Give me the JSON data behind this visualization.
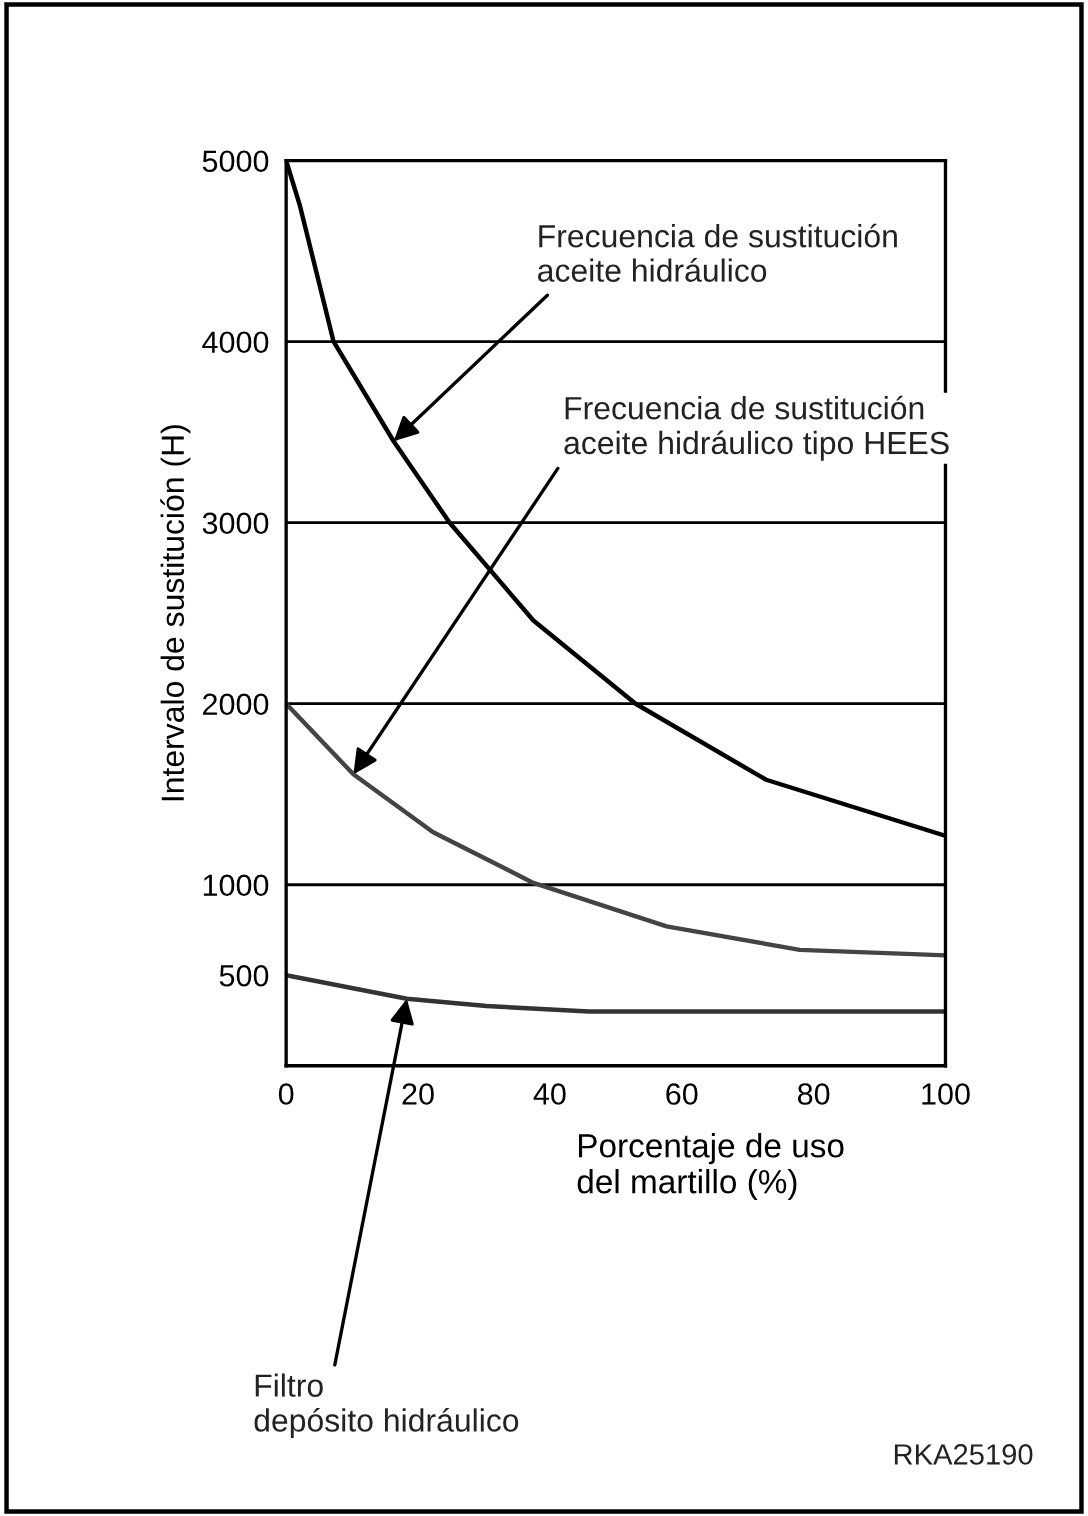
{
  "chart_data": {
    "type": "line",
    "ylabel": "Intervalo de sustitución (H)",
    "xlabel": "Porcentaje de uso\ndel martillo (%)",
    "xlim": [
      0,
      100
    ],
    "xticks": [
      0,
      20,
      40,
      60,
      80,
      100
    ],
    "ylim": [
      0,
      5000
    ],
    "yticks": [
      500,
      1000,
      2000,
      3000,
      4000,
      5000
    ],
    "grid": false,
    "legend": false,
    "marker": "none",
    "line_style": "solid",
    "ref_lines": [
      {
        "axis": "y",
        "value": 1000,
        "label": null,
        "color": "#000000"
      },
      {
        "axis": "y",
        "value": 2000,
        "label": null,
        "color": "#000000"
      },
      {
        "axis": "y",
        "value": 3000,
        "label": null,
        "color": "#000000"
      },
      {
        "axis": "y",
        "value": 4000,
        "label": null,
        "color": "#000000"
      }
    ],
    "series": [
      {
        "color": "#000000",
        "x": [
          0,
          2.1,
          7.2,
          16.3,
          24.8,
          37.5,
          53,
          72.8,
          100
        ],
        "values": [
          5000,
          4750,
          4000,
          3450,
          3000,
          2460,
          2000,
          1580,
          1270
        ]
      },
      {
        "color": "#444444",
        "x": [
          0,
          10.2,
          22.3,
          37.5,
          57.7,
          77.9,
          100
        ],
        "values": [
          2000,
          1610,
          1290,
          1010,
          770,
          640,
          610
        ]
      },
      {
        "color": "#333333",
        "x": [
          0,
          18.3,
          30.4,
          45.9,
          70,
          100
        ],
        "values": [
          500,
          370,
          330,
          300,
          300,
          300
        ]
      }
    ],
    "annotations": [
      {
        "text": "Frecuencia de sustitución\naceite hidráulico",
        "x": 16.3,
        "y": 3450
      },
      {
        "text": "Frecuencia de sustitución\naceite hidráulico tipo HEES",
        "x": 10.2,
        "y": 1610
      },
      {
        "text": "Filtro\ndepósito hidráulico",
        "x": 18.3,
        "y": 370
      },
      "RKA25190"
    ]
  }
}
